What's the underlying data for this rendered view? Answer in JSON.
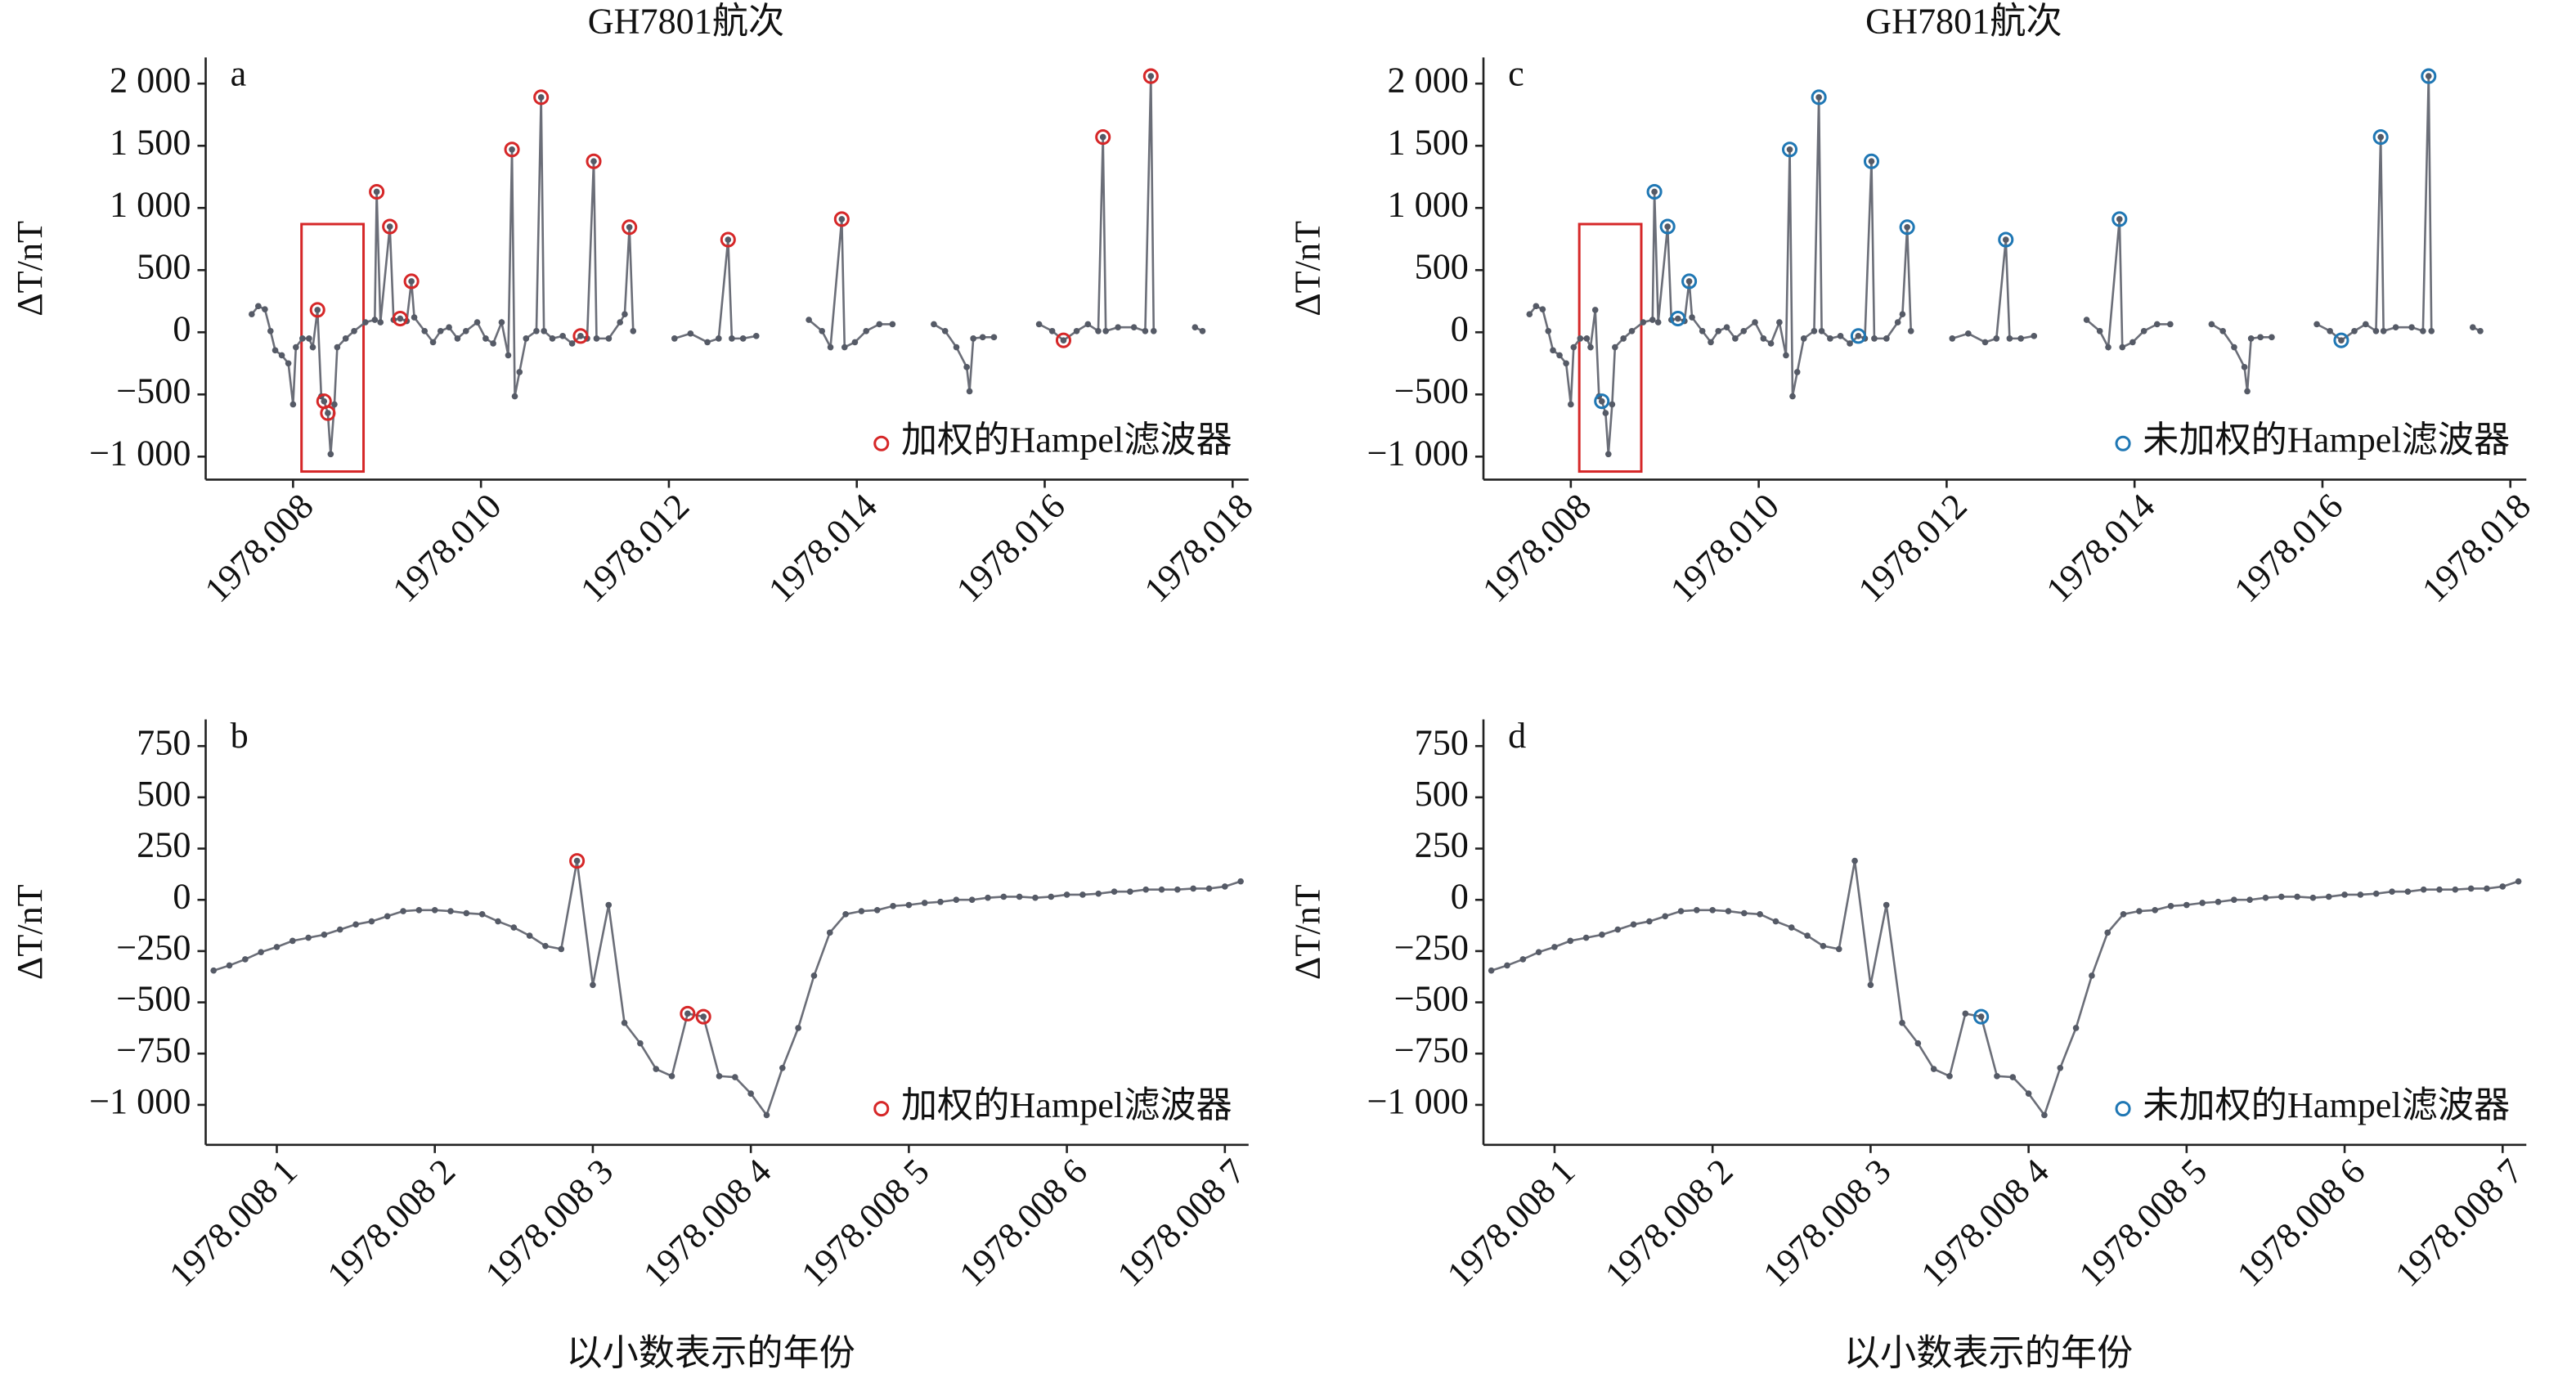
{
  "chart_data": [
    {
      "type": "line",
      "title": "GH7801航次",
      "label": "a",
      "ylabel": "ΔT/nT",
      "color": "#6b6e78",
      "grid": false,
      "xlim": [
        1978.00707,
        1978.01817
      ],
      "ylim": [
        -1185,
        2210
      ],
      "xticks": [
        {
          "value": 1978.008,
          "label": "1978.008"
        },
        {
          "value": 1978.01,
          "label": "1978.010"
        },
        {
          "value": 1978.012,
          "label": "1978.012"
        },
        {
          "value": 1978.014,
          "label": "1978.014"
        },
        {
          "value": 1978.016,
          "label": "1978.016"
        },
        {
          "value": 1978.018,
          "label": "1978.018"
        }
      ],
      "yticks": [
        {
          "value": 2000,
          "label": "2 000"
        },
        {
          "value": 1500,
          "label": "1 500"
        },
        {
          "value": 1000,
          "label": "1 000"
        },
        500,
        0,
        {
          "value": -500,
          "label": "−500"
        },
        {
          "value": -1000,
          "label": "−1 000"
        }
      ],
      "x": [
        1978.00756,
        1978.00763,
        1978.0077,
        1978.00776,
        1978.00781,
        1978.00788,
        1978.00795,
        1978.008,
        1978.00803,
        1978.0081,
        1978.00817,
        1978.00821,
        1978.00826,
        1978.0083,
        1978.00833,
        1978.00837,
        1978.0084,
        1978.00844,
        1978.00847,
        1978.00856,
        1978.00865,
        1978.00877,
        1978.00887,
        1978.00889,
        1978.00893,
        1978.00903,
        1978.00907,
        1978.00914,
        1978.00921,
        1978.00926,
        1978.00929,
        1978.0094,
        1978.00949,
        1978.00957,
        1978.00966,
        1978.00975,
        1978.00984,
        1978.00996,
        1978.01005,
        1978.01013,
        1978.01022,
        1978.01029,
        1978.01033,
        1978.01036,
        1978.01041,
        1978.01048,
        1978.01059,
        1978.01064,
        1978.01067,
        1978.01076,
        1978.01087,
        1978.01097,
        1978.01106,
        1978.01113,
        1978.0112,
        1978.01123,
        1978.01136,
        1978.01148,
        1978.01153,
        1978.01158,
        1978.01162,
        null,
        1978.01206,
        1978.01223,
        1978.01241,
        1978.01253,
        1978.01263,
        1978.01267,
        1978.01279,
        1978.01293,
        null,
        1978.01349,
        1978.01363,
        1978.01372,
        1978.01384,
        1978.01387,
        1978.01398,
        1978.0141,
        1978.01424,
        1978.01438,
        null,
        1978.01482,
        1978.01494,
        1978.01506,
        1978.01517,
        1978.0152,
        1978.01524,
        1978.01534,
        1978.01546,
        null,
        1978.01594,
        1978.01608,
        1978.0162,
        1978.01634,
        1978.01646,
        1978.01657,
        1978.01662,
        1978.01665,
        1978.01678,
        1978.01695,
        1978.01707,
        1978.01713,
        1978.01716,
        null,
        1978.0176,
        1978.01768
      ],
      "values": [
        145,
        210,
        185,
        10,
        -145,
        -185,
        -250,
        -580,
        -120,
        -50,
        -50,
        -120,
        180,
        -515,
        -555,
        -650,
        -980,
        -580,
        -120,
        -50,
        10,
        80,
        100,
        1130,
        80,
        850,
        100,
        110,
        90,
        410,
        120,
        10,
        -80,
        10,
        40,
        -50,
        10,
        80,
        -50,
        -90,
        80,
        -185,
        1470,
        -515,
        -320,
        -50,
        10,
        1890,
        10,
        -50,
        -30,
        -90,
        -30,
        -50,
        1375,
        -50,
        -50,
        80,
        145,
        845,
        10,
        null,
        -50,
        -10,
        -80,
        -50,
        745,
        -50,
        -50,
        -30,
        null,
        100,
        10,
        -120,
        910,
        -120,
        -80,
        10,
        65,
        65,
        null,
        65,
        10,
        -120,
        -280,
        -475,
        -50,
        -40,
        -40,
        null,
        65,
        10,
        -65,
        10,
        65,
        10,
        1570,
        10,
        40,
        40,
        10,
        2060,
        10,
        null,
        40,
        10
      ],
      "outliers": {
        "name": "加权的Hampel滤波器",
        "color": "#d62728",
        "x": [
          1978.00826,
          1978.00833,
          1978.00837,
          1978.00889,
          1978.00903,
          1978.00914,
          1978.00926,
          1978.01033,
          1978.01064,
          1978.01106,
          1978.0112,
          1978.01158,
          1978.01263,
          1978.01384,
          1978.0162,
          1978.01662,
          1978.01713
        ],
        "values": [
          180,
          -555,
          -650,
          1130,
          850,
          110,
          410,
          1470,
          1890,
          -30,
          1375,
          845,
          745,
          910,
          -65,
          1570,
          2060
        ]
      },
      "legend": "lower right",
      "highlight": {
        "color": "#d62728",
        "xlim": [
          1978.00809,
          1978.00875
        ],
        "ylim": [
          -1120,
          870
        ]
      }
    },
    {
      "type": "line",
      "label": "b",
      "ylabel": "ΔT/nT",
      "xlabel": "以小数表示的年份",
      "color": "#6b6e78",
      "grid": false,
      "xlim": [
        1978.008055,
        1978.008715
      ],
      "ylim": [
        -1195,
        880
      ],
      "xticks": [
        {
          "value": 1978.0081,
          "label": "1978.008 1"
        },
        {
          "value": 1978.0082,
          "label": "1978.008 2"
        },
        {
          "value": 1978.0083,
          "label": "1978.008 3"
        },
        {
          "value": 1978.0084,
          "label": "1978.008 4"
        },
        {
          "value": 1978.0085,
          "label": "1978.008 5"
        },
        {
          "value": 1978.0086,
          "label": "1978.008 6"
        },
        {
          "value": 1978.0087,
          "label": "1978.008 7"
        }
      ],
      "yticks": [
        750,
        500,
        250,
        0,
        {
          "value": -250,
          "label": "−250"
        },
        {
          "value": -500,
          "label": "−500"
        },
        {
          "value": -750,
          "label": "−750"
        },
        {
          "value": -1000,
          "label": "−1 000"
        }
      ],
      "x": [
        1978.00806,
        1978.00807,
        1978.00808,
        1978.00809,
        1978.0081,
        1978.00811,
        1978.00812,
        1978.00813,
        1978.00814,
        1978.00815,
        1978.00816,
        1978.00817,
        1978.00818,
        1978.00819,
        1978.0082,
        1978.00821,
        1978.00822,
        1978.00823,
        1978.00824,
        1978.00825,
        1978.00826,
        1978.00827,
        1978.00828,
        1978.00829,
        1978.0083,
        1978.00831,
        1978.00832,
        1978.00833,
        1978.00834,
        1978.00835,
        1978.00836,
        1978.00837,
        1978.00838,
        1978.00839,
        1978.0084,
        1978.00841,
        1978.00842,
        1978.00843,
        1978.00844,
        1978.00845,
        1978.00846,
        1978.00847,
        1978.00848,
        1978.00849,
        1978.0085,
        1978.00851,
        1978.00852,
        1978.00853,
        1978.00854,
        1978.00855,
        1978.00856,
        1978.00857,
        1978.00858,
        1978.00859,
        1978.0086,
        1978.00861,
        1978.00862,
        1978.00863,
        1978.00864,
        1978.00865,
        1978.00866,
        1978.00867,
        1978.00868,
        1978.00869,
        1978.0087,
        1978.00871
      ],
      "values": [
        -345,
        -320,
        -290,
        -255,
        -230,
        -200,
        -185,
        -170,
        -145,
        -120,
        -105,
        -80,
        -55,
        -50,
        -50,
        -55,
        -65,
        -70,
        -105,
        -135,
        -175,
        -225,
        -240,
        190,
        -415,
        -25,
        -600,
        -700,
        -825,
        -860,
        -555,
        -570,
        -860,
        -865,
        -945,
        -1050,
        -820,
        -625,
        -370,
        -160,
        -70,
        -55,
        -50,
        -30,
        -25,
        -15,
        -10,
        0,
        0,
        10,
        15,
        15,
        10,
        15,
        25,
        25,
        30,
        40,
        40,
        50,
        50,
        50,
        55,
        55,
        65,
        90
      ],
      "outliers": {
        "name": "加权的Hampel滤波器",
        "color": "#d62728",
        "x": [
          1978.00829,
          1978.00836,
          1978.00837
        ],
        "values": [
          190,
          -555,
          -570
        ]
      },
      "legend": "lower right"
    },
    {
      "type": "line",
      "title": "GH7801航次",
      "label": "c",
      "ylabel": "ΔT/nT",
      "color": "#6b6e78",
      "grid": false,
      "xlim": [
        1978.00707,
        1978.01817
      ],
      "ylim": [
        -1185,
        2210
      ],
      "xticks": [
        {
          "value": 1978.008,
          "label": "1978.008"
        },
        {
          "value": 1978.01,
          "label": "1978.010"
        },
        {
          "value": 1978.012,
          "label": "1978.012"
        },
        {
          "value": 1978.014,
          "label": "1978.014"
        },
        {
          "value": 1978.016,
          "label": "1978.016"
        },
        {
          "value": 1978.018,
          "label": "1978.018"
        }
      ],
      "yticks": [
        {
          "value": 2000,
          "label": "2 000"
        },
        {
          "value": 1500,
          "label": "1 500"
        },
        {
          "value": 1000,
          "label": "1 000"
        },
        500,
        0,
        {
          "value": -500,
          "label": "−500"
        },
        {
          "value": -1000,
          "label": "−1 000"
        }
      ],
      "x": [
        1978.00756,
        1978.00763,
        1978.0077,
        1978.00776,
        1978.00781,
        1978.00788,
        1978.00795,
        1978.008,
        1978.00803,
        1978.0081,
        1978.00817,
        1978.00821,
        1978.00826,
        1978.0083,
        1978.00833,
        1978.00837,
        1978.0084,
        1978.00844,
        1978.00847,
        1978.00856,
        1978.00865,
        1978.00877,
        1978.00887,
        1978.00889,
        1978.00893,
        1978.00903,
        1978.00907,
        1978.00914,
        1978.00921,
        1978.00926,
        1978.00929,
        1978.0094,
        1978.00949,
        1978.00957,
        1978.00966,
        1978.00975,
        1978.00984,
        1978.00996,
        1978.01005,
        1978.01013,
        1978.01022,
        1978.01029,
        1978.01033,
        1978.01036,
        1978.01041,
        1978.01048,
        1978.01059,
        1978.01064,
        1978.01067,
        1978.01076,
        1978.01087,
        1978.01097,
        1978.01106,
        1978.01113,
        1978.0112,
        1978.01123,
        1978.01136,
        1978.01148,
        1978.01153,
        1978.01158,
        1978.01162,
        null,
        1978.01206,
        1978.01223,
        1978.01241,
        1978.01253,
        1978.01263,
        1978.01267,
        1978.01279,
        1978.01293,
        null,
        1978.01349,
        1978.01363,
        1978.01372,
        1978.01384,
        1978.01387,
        1978.01398,
        1978.0141,
        1978.01424,
        1978.01438,
        null,
        1978.01482,
        1978.01494,
        1978.01506,
        1978.01517,
        1978.0152,
        1978.01524,
        1978.01534,
        1978.01546,
        null,
        1978.01594,
        1978.01608,
        1978.0162,
        1978.01634,
        1978.01646,
        1978.01657,
        1978.01662,
        1978.01665,
        1978.01678,
        1978.01695,
        1978.01707,
        1978.01713,
        1978.01716,
        null,
        1978.0176,
        1978.01768
      ],
      "values": [
        145,
        210,
        185,
        10,
        -145,
        -185,
        -250,
        -580,
        -120,
        -50,
        -50,
        -120,
        180,
        -515,
        -555,
        -650,
        -980,
        -580,
        -120,
        -50,
        10,
        80,
        100,
        1130,
        80,
        850,
        100,
        110,
        90,
        410,
        120,
        10,
        -80,
        10,
        40,
        -50,
        10,
        80,
        -50,
        -90,
        80,
        -185,
        1470,
        -515,
        -320,
        -50,
        10,
        1890,
        10,
        -50,
        -30,
        -90,
        -30,
        -50,
        1375,
        -50,
        -50,
        80,
        145,
        845,
        10,
        null,
        -50,
        -10,
        -80,
        -50,
        745,
        -50,
        -50,
        -30,
        null,
        100,
        10,
        -120,
        910,
        -120,
        -80,
        10,
        65,
        65,
        null,
        65,
        10,
        -120,
        -280,
        -475,
        -50,
        -40,
        -40,
        null,
        65,
        10,
        -65,
        10,
        65,
        10,
        1570,
        10,
        40,
        40,
        10,
        2060,
        10,
        null,
        40,
        10
      ],
      "outliers": {
        "name": "未加权的Hampel滤波器",
        "color": "#1f77b4",
        "x": [
          1978.00833,
          1978.00889,
          1978.00903,
          1978.00914,
          1978.00926,
          1978.01033,
          1978.01064,
          1978.01106,
          1978.0112,
          1978.01158,
          1978.01263,
          1978.01384,
          1978.0162,
          1978.01662,
          1978.01713
        ],
        "values": [
          -555,
          1130,
          850,
          110,
          410,
          1470,
          1890,
          -30,
          1375,
          845,
          745,
          910,
          -65,
          1570,
          2060
        ]
      },
      "legend": "lower right",
      "highlight": {
        "color": "#d62728",
        "xlim": [
          1978.00809,
          1978.00875
        ],
        "ylim": [
          -1120,
          870
        ]
      }
    },
    {
      "type": "line",
      "label": "d",
      "ylabel": "ΔT/nT",
      "xlabel": "以小数表示的年份",
      "color": "#6b6e78",
      "grid": false,
      "xlim": [
        1978.008055,
        1978.008715
      ],
      "ylim": [
        -1195,
        880
      ],
      "xticks": [
        {
          "value": 1978.0081,
          "label": "1978.008 1"
        },
        {
          "value": 1978.0082,
          "label": "1978.008 2"
        },
        {
          "value": 1978.0083,
          "label": "1978.008 3"
        },
        {
          "value": 1978.0084,
          "label": "1978.008 4"
        },
        {
          "value": 1978.0085,
          "label": "1978.008 5"
        },
        {
          "value": 1978.0086,
          "label": "1978.008 6"
        },
        {
          "value": 1978.0087,
          "label": "1978.008 7"
        }
      ],
      "yticks": [
        750,
        500,
        250,
        0,
        {
          "value": -250,
          "label": "−250"
        },
        {
          "value": -500,
          "label": "−500"
        },
        {
          "value": -750,
          "label": "−750"
        },
        {
          "value": -1000,
          "label": "−1 000"
        }
      ],
      "x": [
        1978.00806,
        1978.00807,
        1978.00808,
        1978.00809,
        1978.0081,
        1978.00811,
        1978.00812,
        1978.00813,
        1978.00814,
        1978.00815,
        1978.00816,
        1978.00817,
        1978.00818,
        1978.00819,
        1978.0082,
        1978.00821,
        1978.00822,
        1978.00823,
        1978.00824,
        1978.00825,
        1978.00826,
        1978.00827,
        1978.00828,
        1978.00829,
        1978.0083,
        1978.00831,
        1978.00832,
        1978.00833,
        1978.00834,
        1978.00835,
        1978.00836,
        1978.00837,
        1978.00838,
        1978.00839,
        1978.0084,
        1978.00841,
        1978.00842,
        1978.00843,
        1978.00844,
        1978.00845,
        1978.00846,
        1978.00847,
        1978.00848,
        1978.00849,
        1978.0085,
        1978.00851,
        1978.00852,
        1978.00853,
        1978.00854,
        1978.00855,
        1978.00856,
        1978.00857,
        1978.00858,
        1978.00859,
        1978.0086,
        1978.00861,
        1978.00862,
        1978.00863,
        1978.00864,
        1978.00865,
        1978.00866,
        1978.00867,
        1978.00868,
        1978.00869,
        1978.0087,
        1978.00871
      ],
      "values": [
        -345,
        -320,
        -290,
        -255,
        -230,
        -200,
        -185,
        -170,
        -145,
        -120,
        -105,
        -80,
        -55,
        -50,
        -50,
        -55,
        -65,
        -70,
        -105,
        -135,
        -175,
        -225,
        -240,
        190,
        -415,
        -25,
        -600,
        -700,
        -825,
        -860,
        -555,
        -570,
        -860,
        -865,
        -945,
        -1050,
        -820,
        -625,
        -370,
        -160,
        -70,
        -55,
        -50,
        -30,
        -25,
        -15,
        -10,
        0,
        0,
        10,
        15,
        15,
        10,
        15,
        25,
        25,
        30,
        40,
        40,
        50,
        50,
        50,
        55,
        55,
        65,
        90
      ],
      "outliers": {
        "name": "未加权的Hampel滤波器",
        "color": "#1f77b4",
        "x": [
          1978.00837
        ],
        "values": [
          -570
        ]
      },
      "legend": "lower right"
    }
  ]
}
